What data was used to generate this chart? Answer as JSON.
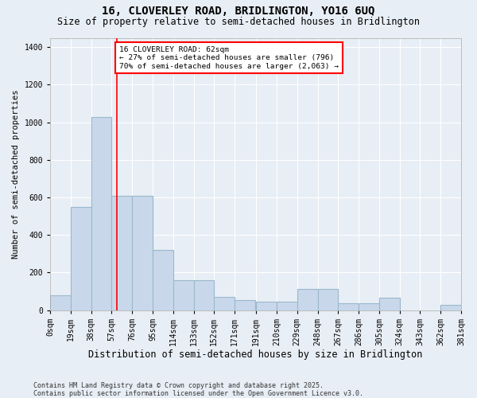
{
  "title": "16, CLOVERLEY ROAD, BRIDLINGTON, YO16 6UQ",
  "subtitle": "Size of property relative to semi-detached houses in Bridlington",
  "xlabel": "Distribution of semi-detached houses by size in Bridlington",
  "ylabel": "Number of semi-detached properties",
  "bins": [
    "0sqm",
    "19sqm",
    "38sqm",
    "57sqm",
    "76sqm",
    "95sqm",
    "114sqm",
    "133sqm",
    "152sqm",
    "171sqm",
    "191sqm",
    "210sqm",
    "229sqm",
    "248sqm",
    "267sqm",
    "286sqm",
    "305sqm",
    "324sqm",
    "343sqm",
    "362sqm",
    "381sqm"
  ],
  "bar_values": [
    80,
    550,
    1030,
    610,
    610,
    320,
    160,
    160,
    70,
    55,
    45,
    45,
    115,
    115,
    35,
    35,
    65,
    0,
    0,
    30,
    0
  ],
  "bar_left_edges": [
    0,
    19,
    38,
    57,
    76,
    95,
    114,
    133,
    152,
    171,
    191,
    210,
    229,
    248,
    267,
    286,
    305,
    324,
    343,
    362,
    381
  ],
  "bin_width": 19,
  "bar_color": "#c8d8ea",
  "bar_edge_color": "#9ab8cc",
  "vline_x": 62,
  "vline_color": "red",
  "annotation_text": "16 CLOVERLEY ROAD: 62sqm\n← 27% of semi-detached houses are smaller (796)\n70% of semi-detached houses are larger (2,063) →",
  "annotation_box_color": "white",
  "annotation_box_edge_color": "red",
  "ylim": [
    0,
    1450
  ],
  "yticks": [
    0,
    200,
    400,
    600,
    800,
    1000,
    1200,
    1400
  ],
  "bg_color": "#e8eef5",
  "footer": "Contains HM Land Registry data © Crown copyright and database right 2025.\nContains public sector information licensed under the Open Government Licence v3.0.",
  "title_fontsize": 10,
  "subtitle_fontsize": 8.5,
  "xlabel_fontsize": 8.5,
  "ylabel_fontsize": 7.5,
  "tick_fontsize": 7,
  "footer_fontsize": 6
}
